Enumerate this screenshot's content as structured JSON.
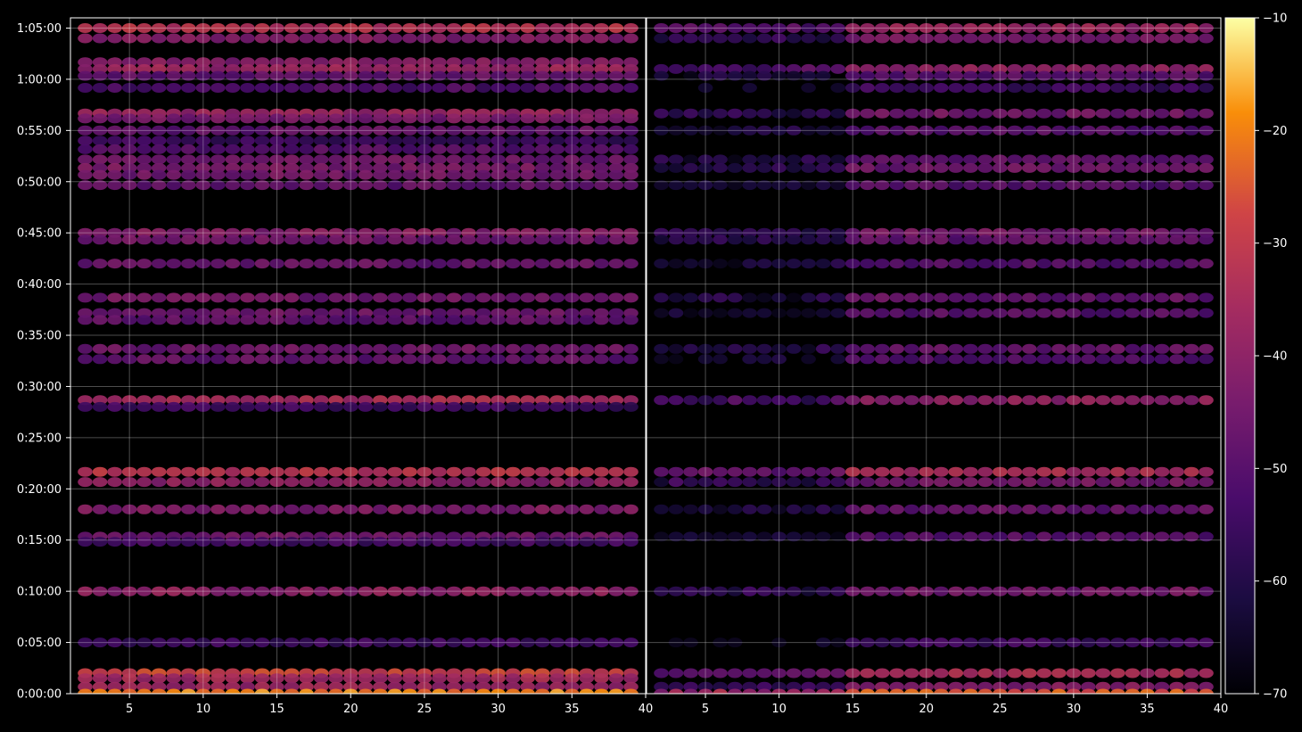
{
  "background": "#000000",
  "text_color": "#ffffff",
  "chart_data": [
    {
      "type": "heatmap",
      "panel": "left",
      "title": "",
      "xlabel": "",
      "ylabel": "",
      "xlim": [
        1,
        40
      ],
      "ylim": [
        0,
        3960
      ],
      "x_ticks": [
        5,
        10,
        15,
        20,
        25,
        30,
        35,
        40
      ],
      "x_tick_labels": [
        "5",
        "10",
        "15",
        "20",
        "25",
        "30",
        "35",
        "40"
      ],
      "y_ticks": [
        0,
        300,
        600,
        900,
        1200,
        1500,
        1800,
        2100,
        2400,
        2700,
        3000,
        3300,
        3600,
        3900
      ],
      "y_tick_labels": [
        "0:00:00",
        "0:05:00",
        "0:10:00",
        "0:15:00",
        "0:20:00",
        "0:25:00",
        "0:30:00",
        "0:35:00",
        "0:40:00",
        "0:45:00",
        "0:50:00",
        "0:55:00",
        "1:00:00",
        "1:05:00"
      ],
      "grid": true,
      "x_range_cells": [
        2,
        39
      ],
      "rows": [
        {
          "y": 3900,
          "value": -33
        },
        {
          "y": 3840,
          "value": -42
        },
        {
          "y": 3700,
          "value": -42
        },
        {
          "y": 3660,
          "value": -38
        },
        {
          "y": 3620,
          "value": -48
        },
        {
          "y": 3550,
          "value": -52
        },
        {
          "y": 3400,
          "value": -38
        },
        {
          "y": 3370,
          "value": -44
        },
        {
          "y": 3300,
          "value": -48
        },
        {
          "y": 3240,
          "value": -55
        },
        {
          "y": 3190,
          "value": -50
        },
        {
          "y": 3130,
          "value": -46
        },
        {
          "y": 3080,
          "value": -44
        },
        {
          "y": 3040,
          "value": -45
        },
        {
          "y": 2980,
          "value": -48
        },
        {
          "y": 2700,
          "value": -42
        },
        {
          "y": 2660,
          "value": -46
        },
        {
          "y": 2520,
          "value": -47
        },
        {
          "y": 2320,
          "value": -45
        },
        {
          "y": 2230,
          "value": -46
        },
        {
          "y": 2190,
          "value": -48
        },
        {
          "y": 2020,
          "value": -46
        },
        {
          "y": 1960,
          "value": -48
        },
        {
          "y": 1720,
          "value": -35
        },
        {
          "y": 1680,
          "value": -55
        },
        {
          "y": 1300,
          "value": -32
        },
        {
          "y": 1240,
          "value": -40
        },
        {
          "y": 1080,
          "value": -43
        },
        {
          "y": 920,
          "value": -46
        },
        {
          "y": 890,
          "value": -54
        },
        {
          "y": 600,
          "value": -40
        },
        {
          "y": 300,
          "value": -55
        },
        {
          "y": 120,
          "value": -28
        },
        {
          "y": 90,
          "value": -36
        },
        {
          "y": 40,
          "value": -38
        },
        {
          "y": 0,
          "value": -20
        }
      ]
    },
    {
      "type": "heatmap",
      "panel": "right",
      "title": "",
      "xlabel": "",
      "ylabel": "",
      "xlim": [
        1,
        40
      ],
      "ylim": [
        0,
        3960
      ],
      "x_ticks": [
        5,
        10,
        15,
        20,
        25,
        30,
        35,
        40
      ],
      "x_tick_labels": [
        "5",
        "10",
        "15",
        "20",
        "25",
        "30",
        "35",
        "40"
      ],
      "grid": true,
      "x_range_cells": [
        2,
        39
      ],
      "faded_start_x": 15,
      "rows": [
        {
          "y": 3900,
          "value": -38
        },
        {
          "y": 3840,
          "value": -45
        },
        {
          "y": 3660,
          "value": -40
        },
        {
          "y": 3620,
          "value": -50
        },
        {
          "y": 3550,
          "value": -55
        },
        {
          "y": 3400,
          "value": -45
        },
        {
          "y": 3300,
          "value": -50
        },
        {
          "y": 3130,
          "value": -48
        },
        {
          "y": 3080,
          "value": -46
        },
        {
          "y": 2980,
          "value": -50
        },
        {
          "y": 2700,
          "value": -45
        },
        {
          "y": 2660,
          "value": -48
        },
        {
          "y": 2520,
          "value": -50
        },
        {
          "y": 2320,
          "value": -48
        },
        {
          "y": 2230,
          "value": -50
        },
        {
          "y": 2020,
          "value": -48
        },
        {
          "y": 1960,
          "value": -52
        },
        {
          "y": 1720,
          "value": -40
        },
        {
          "y": 1300,
          "value": -35
        },
        {
          "y": 1240,
          "value": -45
        },
        {
          "y": 1080,
          "value": -48
        },
        {
          "y": 920,
          "value": -50
        },
        {
          "y": 600,
          "value": -45
        },
        {
          "y": 300,
          "value": -55
        },
        {
          "y": 120,
          "value": -35
        },
        {
          "y": 40,
          "value": -42
        },
        {
          "y": 0,
          "value": -25
        }
      ]
    }
  ],
  "colorbar": {
    "colormap": "inferno",
    "min": -70,
    "max": -10,
    "ticks": [
      -10,
      -20,
      -30,
      -40,
      -50,
      -60,
      -70
    ],
    "tick_labels": [
      "−10",
      "−20",
      "−30",
      "−40",
      "−50",
      "−60",
      "−70"
    ]
  }
}
